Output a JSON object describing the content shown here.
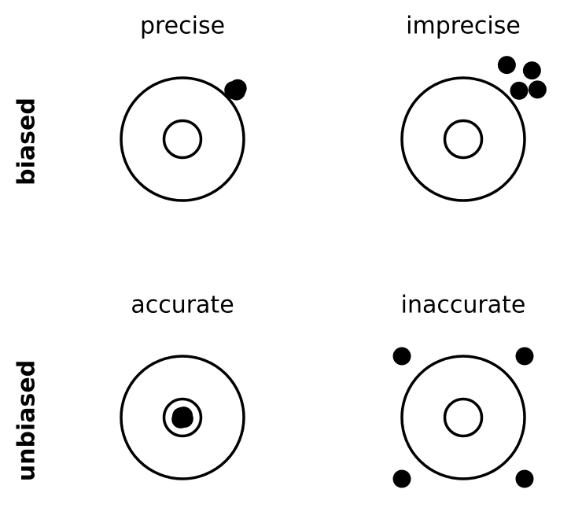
{
  "figure": {
    "row_labels": {
      "top": "biased",
      "bottom": "unbiased"
    },
    "panels": [
      {
        "key": "precise",
        "title": "precise",
        "shots": [
          [
            0.83,
            0.8
          ],
          [
            0.88,
            0.78
          ],
          [
            0.9,
            0.83
          ]
        ]
      },
      {
        "key": "imprecise",
        "title": "imprecise",
        "shots": [
          [
            0.71,
            1.21
          ],
          [
            1.12,
            1.12
          ],
          [
            0.91,
            0.79
          ],
          [
            1.21,
            0.81
          ]
        ]
      },
      {
        "key": "accurate",
        "title": "accurate",
        "shots": [
          [
            -0.02,
            0.02
          ],
          [
            0.03,
            -0.02
          ],
          [
            -0.03,
            -0.03
          ],
          [
            0.02,
            0.03
          ]
        ]
      },
      {
        "key": "inaccurate",
        "title": "inaccurate",
        "shots": [
          [
            -1,
            1
          ],
          [
            1,
            1
          ],
          [
            -1,
            -1
          ],
          [
            1,
            -1
          ]
        ]
      }
    ],
    "colors": {
      "ink": "#000000",
      "background": "#ffffff"
    }
  }
}
